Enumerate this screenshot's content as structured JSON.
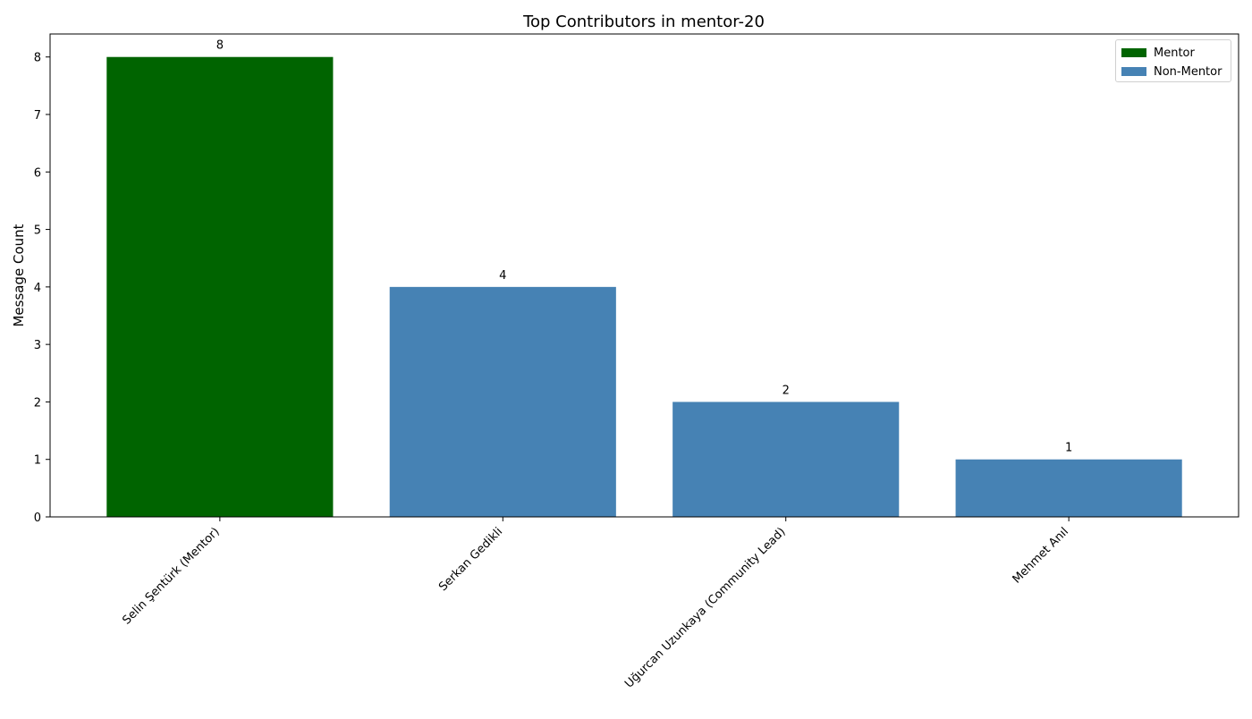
{
  "chart_data": {
    "type": "bar",
    "title": "Top Contributors in mentor-20",
    "xlabel": "",
    "ylabel": "Message Count",
    "categories": [
      "Selin Şentürk (Mentor)",
      "Serkan Gedikli",
      "Uğurcan Uzunkaya (Community Lead)",
      "Mehmet Anıl"
    ],
    "values": [
      8,
      4,
      2,
      1
    ],
    "bar_groups": [
      "Mentor",
      "Non-Mentor",
      "Non-Mentor",
      "Non-Mentor"
    ],
    "ylim": [
      0,
      8.4
    ],
    "yticks": [
      0,
      1,
      2,
      3,
      4,
      5,
      6,
      7,
      8
    ],
    "grid": false,
    "legend_position": "top-right",
    "legend": [
      {
        "label": "Mentor",
        "color": "#006400"
      },
      {
        "label": "Non-Mentor",
        "color": "#4682b4"
      }
    ]
  }
}
